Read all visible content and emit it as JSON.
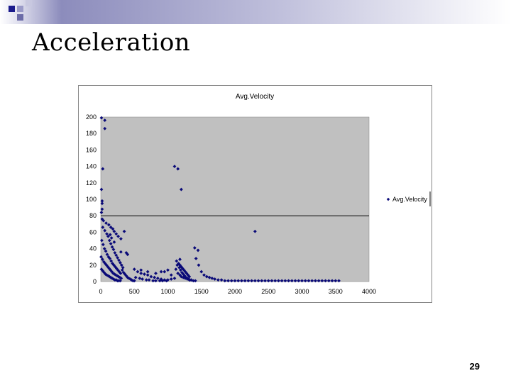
{
  "slide": {
    "title": "Acceleration",
    "page_number": "29"
  },
  "colors": {
    "plot_background": "#c0c0c0",
    "marker": "#0a0a78",
    "band_accent": "#1a1a8c"
  },
  "chart_data": {
    "type": "scatter",
    "title": "Avg.Velocity",
    "xlabel": "",
    "ylabel": "",
    "xlim": [
      0,
      4000
    ],
    "ylim": [
      0,
      200
    ],
    "xticks": [
      "0",
      "500",
      "1000",
      "1500",
      "2000",
      "2500",
      "3000",
      "3500",
      "4000"
    ],
    "yticks": [
      "0",
      "20",
      "40",
      "60",
      "80",
      "100",
      "120",
      "140",
      "160",
      "180",
      "200"
    ],
    "grid": "horizontal line at 80",
    "legend": "right",
    "series": [
      {
        "name": "Avg.Velocity",
        "marker": "diamond",
        "points": [
          [
            10,
            199
          ],
          [
            60,
            196
          ],
          [
            60,
            186
          ],
          [
            30,
            137
          ],
          [
            10,
            112
          ],
          [
            20,
            98
          ],
          [
            20,
            95
          ],
          [
            1100,
            140
          ],
          [
            1150,
            137
          ],
          [
            1200,
            112
          ],
          [
            2300,
            61
          ],
          [
            1400,
            41
          ],
          [
            1450,
            38
          ],
          [
            20,
            88
          ],
          [
            10,
            84
          ],
          [
            20,
            76
          ],
          [
            40,
            74
          ],
          [
            80,
            71
          ],
          [
            120,
            69
          ],
          [
            150,
            66
          ],
          [
            180,
            64
          ],
          [
            200,
            61
          ],
          [
            230,
            58
          ],
          [
            260,
            55
          ],
          [
            300,
            52
          ],
          [
            350,
            61
          ],
          [
            30,
            66
          ],
          [
            60,
            62
          ],
          [
            90,
            58
          ],
          [
            110,
            55
          ],
          [
            130,
            50
          ],
          [
            150,
            46
          ],
          [
            170,
            42
          ],
          [
            190,
            39
          ],
          [
            210,
            35
          ],
          [
            230,
            32
          ],
          [
            250,
            29
          ],
          [
            270,
            26
          ],
          [
            290,
            23
          ],
          [
            310,
            20
          ],
          [
            330,
            17
          ],
          [
            15,
            50
          ],
          [
            35,
            45
          ],
          [
            55,
            40
          ],
          [
            75,
            37
          ],
          [
            95,
            33
          ],
          [
            115,
            30
          ],
          [
            135,
            28
          ],
          [
            155,
            25
          ],
          [
            175,
            22
          ],
          [
            195,
            20
          ],
          [
            215,
            18
          ],
          [
            235,
            16
          ],
          [
            255,
            14
          ],
          [
            275,
            12
          ],
          [
            295,
            10
          ],
          [
            5,
            30
          ],
          [
            25,
            27
          ],
          [
            45,
            24
          ],
          [
            65,
            22
          ],
          [
            85,
            20
          ],
          [
            105,
            18
          ],
          [
            125,
            16
          ],
          [
            145,
            14
          ],
          [
            165,
            12
          ],
          [
            185,
            10
          ],
          [
            205,
            9
          ],
          [
            225,
            8
          ],
          [
            245,
            7
          ],
          [
            265,
            6
          ],
          [
            285,
            5
          ],
          [
            305,
            4
          ],
          [
            10,
            15
          ],
          [
            30,
            13
          ],
          [
            50,
            11
          ],
          [
            70,
            9
          ],
          [
            90,
            8
          ],
          [
            110,
            7
          ],
          [
            130,
            6
          ],
          [
            150,
            5
          ],
          [
            170,
            4
          ],
          [
            190,
            3
          ],
          [
            210,
            2
          ],
          [
            230,
            2
          ],
          [
            250,
            1
          ],
          [
            270,
            1
          ],
          [
            290,
            1
          ],
          [
            320,
            14
          ],
          [
            340,
            11
          ],
          [
            360,
            9
          ],
          [
            380,
            7
          ],
          [
            400,
            5
          ],
          [
            420,
            4
          ],
          [
            440,
            3
          ],
          [
            460,
            2
          ],
          [
            480,
            1
          ],
          [
            500,
            1
          ],
          [
            380,
            35
          ],
          [
            400,
            33
          ],
          [
            300,
            36
          ],
          [
            200,
            48
          ],
          [
            160,
            53
          ],
          [
            140,
            57
          ],
          [
            500,
            15
          ],
          [
            550,
            12
          ],
          [
            600,
            10
          ],
          [
            650,
            9
          ],
          [
            700,
            8
          ],
          [
            750,
            6
          ],
          [
            800,
            5
          ],
          [
            850,
            4
          ],
          [
            900,
            3
          ],
          [
            950,
            2
          ],
          [
            520,
            5
          ],
          [
            580,
            4
          ],
          [
            620,
            3
          ],
          [
            680,
            2
          ],
          [
            720,
            2
          ],
          [
            780,
            1
          ],
          [
            820,
            1
          ],
          [
            880,
            1
          ],
          [
            920,
            1
          ],
          [
            980,
            1
          ],
          [
            600,
            14
          ],
          [
            700,
            12
          ],
          [
            820,
            10
          ],
          [
            900,
            12
          ],
          [
            1000,
            14
          ],
          [
            1050,
            8
          ],
          [
            1130,
            25
          ],
          [
            1160,
            22
          ],
          [
            1180,
            20
          ],
          [
            1200,
            18
          ],
          [
            1220,
            16
          ],
          [
            1240,
            14
          ],
          [
            1260,
            12
          ],
          [
            1280,
            10
          ],
          [
            1300,
            8
          ],
          [
            1320,
            6
          ],
          [
            1140,
            20
          ],
          [
            1170,
            17
          ],
          [
            1190,
            14
          ],
          [
            1210,
            11
          ],
          [
            1230,
            9
          ],
          [
            1250,
            7
          ],
          [
            1270,
            5
          ],
          [
            1290,
            4
          ],
          [
            1310,
            3
          ],
          [
            1330,
            2
          ],
          [
            1150,
            10
          ],
          [
            1180,
            8
          ],
          [
            1200,
            6
          ],
          [
            1230,
            5
          ],
          [
            1260,
            4
          ],
          [
            1290,
            3
          ],
          [
            1320,
            2
          ],
          [
            1350,
            2
          ],
          [
            1380,
            1
          ],
          [
            1410,
            1
          ],
          [
            1420,
            28
          ],
          [
            1460,
            20
          ],
          [
            1500,
            12
          ],
          [
            1540,
            8
          ],
          [
            1580,
            6
          ],
          [
            1620,
            5
          ],
          [
            1660,
            4
          ],
          [
            1700,
            3
          ],
          [
            1750,
            2
          ],
          [
            1800,
            2
          ],
          [
            1100,
            4
          ],
          [
            1050,
            3
          ],
          [
            1000,
            2
          ],
          [
            950,
            12
          ],
          [
            1120,
            15
          ],
          [
            1180,
            27
          ],
          [
            1850,
            1
          ],
          [
            1900,
            1
          ],
          [
            1950,
            1
          ],
          [
            2000,
            1
          ],
          [
            2050,
            1
          ],
          [
            2100,
            1
          ],
          [
            2150,
            1
          ],
          [
            2200,
            1
          ],
          [
            2250,
            1
          ],
          [
            2300,
            1
          ],
          [
            2350,
            1
          ],
          [
            2400,
            1
          ],
          [
            2450,
            1
          ],
          [
            2500,
            1
          ],
          [
            2550,
            1
          ],
          [
            2600,
            1
          ],
          [
            2650,
            1
          ],
          [
            2700,
            1
          ],
          [
            2750,
            1
          ],
          [
            2800,
            1
          ],
          [
            2850,
            1
          ],
          [
            2900,
            1
          ],
          [
            2950,
            1
          ],
          [
            3000,
            1
          ],
          [
            3050,
            1
          ],
          [
            3100,
            1
          ],
          [
            3150,
            1
          ],
          [
            3200,
            1
          ],
          [
            3250,
            1
          ],
          [
            3300,
            1
          ],
          [
            3350,
            1
          ],
          [
            3400,
            1
          ],
          [
            3450,
            1
          ],
          [
            3500,
            1
          ],
          [
            3550,
            1
          ]
        ]
      }
    ]
  }
}
